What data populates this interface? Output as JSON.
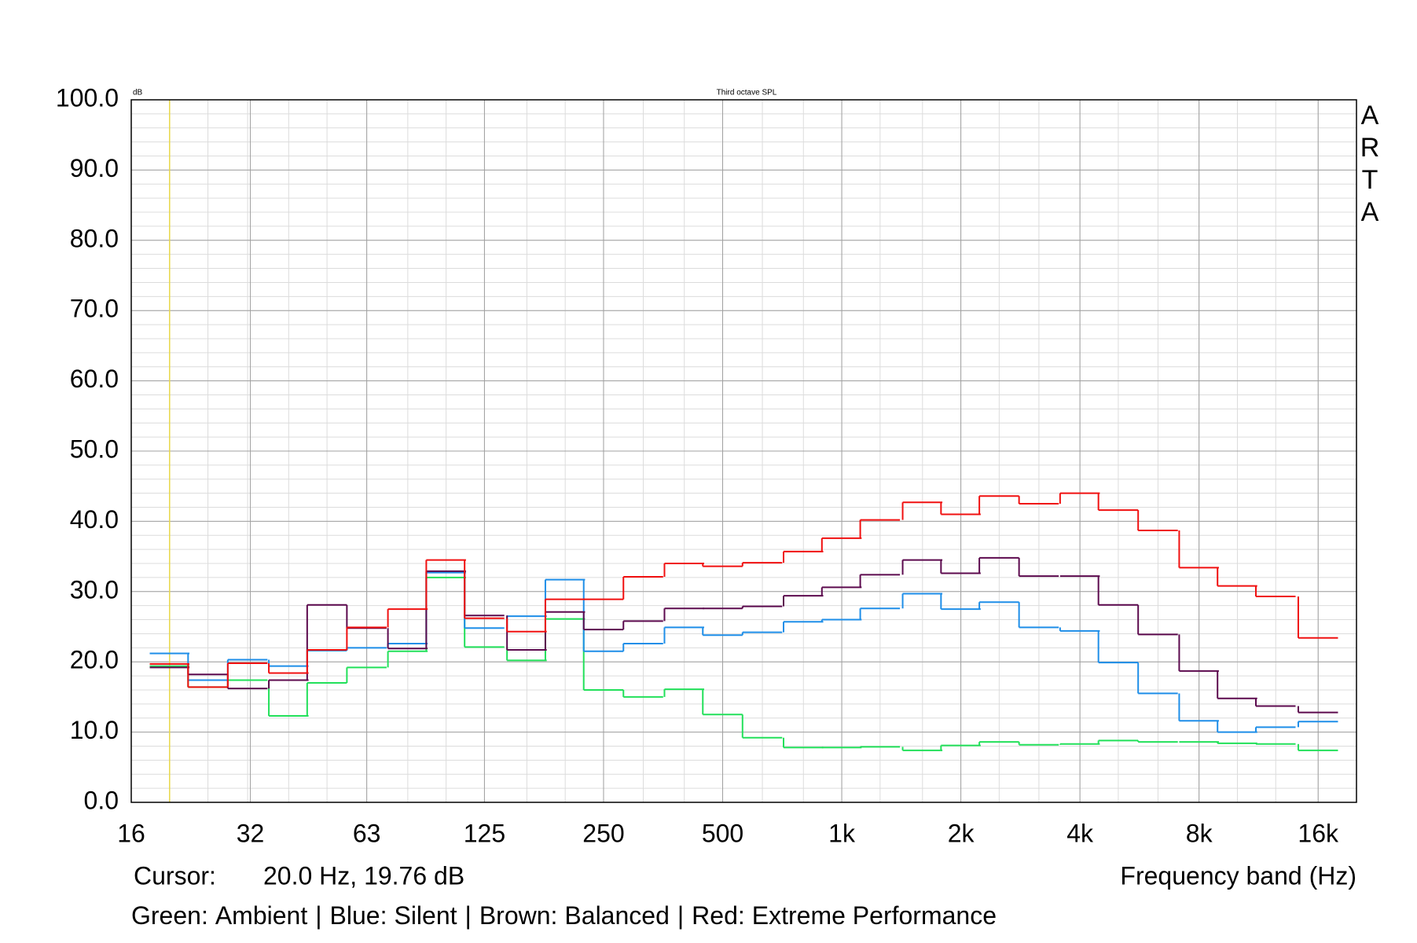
{
  "chart_data": {
    "type": "step",
    "title": "Third octave SPL",
    "y_unit_label": "dB",
    "x_label": "Frequency band (Hz)",
    "watermark_letters": [
      "A",
      "R",
      "T",
      "A"
    ],
    "cursor_label": "Cursor:",
    "cursor_text": "20.0 Hz, 19.76 dB",
    "cursor_x": 20,
    "cursor_color": "#e8d84a",
    "legend_separator": "|",
    "x": [
      20,
      25,
      31.5,
      40,
      50,
      63,
      80,
      100,
      125,
      160,
      200,
      250,
      315,
      400,
      500,
      630,
      800,
      1000,
      1250,
      1600,
      2000,
      2500,
      3150,
      4000,
      5000,
      6300,
      8000,
      10000,
      12500,
      16000
    ],
    "series": [
      {
        "name": "Ambient",
        "color_name": "Green:",
        "color": "#22e05a",
        "values": [
          19.4,
          16.4,
          17.4,
          12.3,
          17.0,
          19.2,
          21.5,
          32.0,
          22.1,
          20.2,
          26.1,
          16.0,
          15.0,
          16.1,
          12.5,
          9.2,
          7.8,
          7.8,
          7.9,
          7.4,
          8.1,
          8.6,
          8.2,
          8.3,
          8.8,
          8.6,
          8.6,
          8.4,
          8.3,
          7.4
        ]
      },
      {
        "name": "Silent",
        "color_name": "Blue:",
        "color": "#1e8ee8",
        "values": [
          21.2,
          17.4,
          20.3,
          19.4,
          21.6,
          22.0,
          22.6,
          32.7,
          24.8,
          26.5,
          31.7,
          21.5,
          22.6,
          24.9,
          23.8,
          24.2,
          25.7,
          26.0,
          27.6,
          29.7,
          27.5,
          28.5,
          24.9,
          24.4,
          19.9,
          15.5,
          11.6,
          10.0,
          10.7,
          11.5
        ]
      },
      {
        "name": "Balanced",
        "color_name": "Brown:",
        "color": "#5c0a4e",
        "values": [
          19.2,
          18.2,
          16.2,
          17.4,
          28.1,
          24.8,
          21.9,
          32.9,
          26.6,
          21.7,
          27.1,
          24.6,
          25.8,
          27.6,
          27.6,
          27.9,
          29.4,
          30.6,
          32.4,
          34.5,
          32.6,
          34.8,
          32.2,
          32.2,
          28.1,
          23.9,
          18.7,
          14.8,
          13.7,
          12.8
        ]
      },
      {
        "name": "Extreme Performance",
        "color_name": "Red:",
        "color": "#f01010",
        "values": [
          19.7,
          16.4,
          19.8,
          18.4,
          21.7,
          24.9,
          27.5,
          34.5,
          26.2,
          24.3,
          28.9,
          28.9,
          32.1,
          34.0,
          33.6,
          34.1,
          35.7,
          37.6,
          40.2,
          42.7,
          41.0,
          43.6,
          42.5,
          44.0,
          41.6,
          38.7,
          33.4,
          30.8,
          29.3,
          23.4
        ]
      }
    ],
    "xlim": [
      16,
      20000
    ],
    "x_log": true,
    "xticks": [
      16,
      32,
      63,
      125,
      250,
      500,
      {
        "value": 1000,
        "label": "1k"
      },
      {
        "value": 2000,
        "label": "2k"
      },
      {
        "value": 4000,
        "label": "4k"
      },
      {
        "value": 8000,
        "label": "8k"
      },
      {
        "value": 16000,
        "label": "16k"
      }
    ],
    "ylim": [
      0,
      100
    ],
    "yticks": [
      {
        "value": 0,
        "label": "0.0"
      },
      {
        "value": 10,
        "label": "10.0"
      },
      {
        "value": 20,
        "label": "20.0"
      },
      {
        "value": 30,
        "label": "30.0"
      },
      {
        "value": 40,
        "label": "40.0"
      },
      {
        "value": 50,
        "label": "50.0"
      },
      {
        "value": 60,
        "label": "60.0"
      },
      {
        "value": 70,
        "label": "70.0"
      },
      {
        "value": 80,
        "label": "80.0"
      },
      {
        "value": 90,
        "label": "90.0"
      },
      {
        "value": 100,
        "label": "100.0"
      }
    ],
    "y_minor_step": 2,
    "grid": true
  }
}
